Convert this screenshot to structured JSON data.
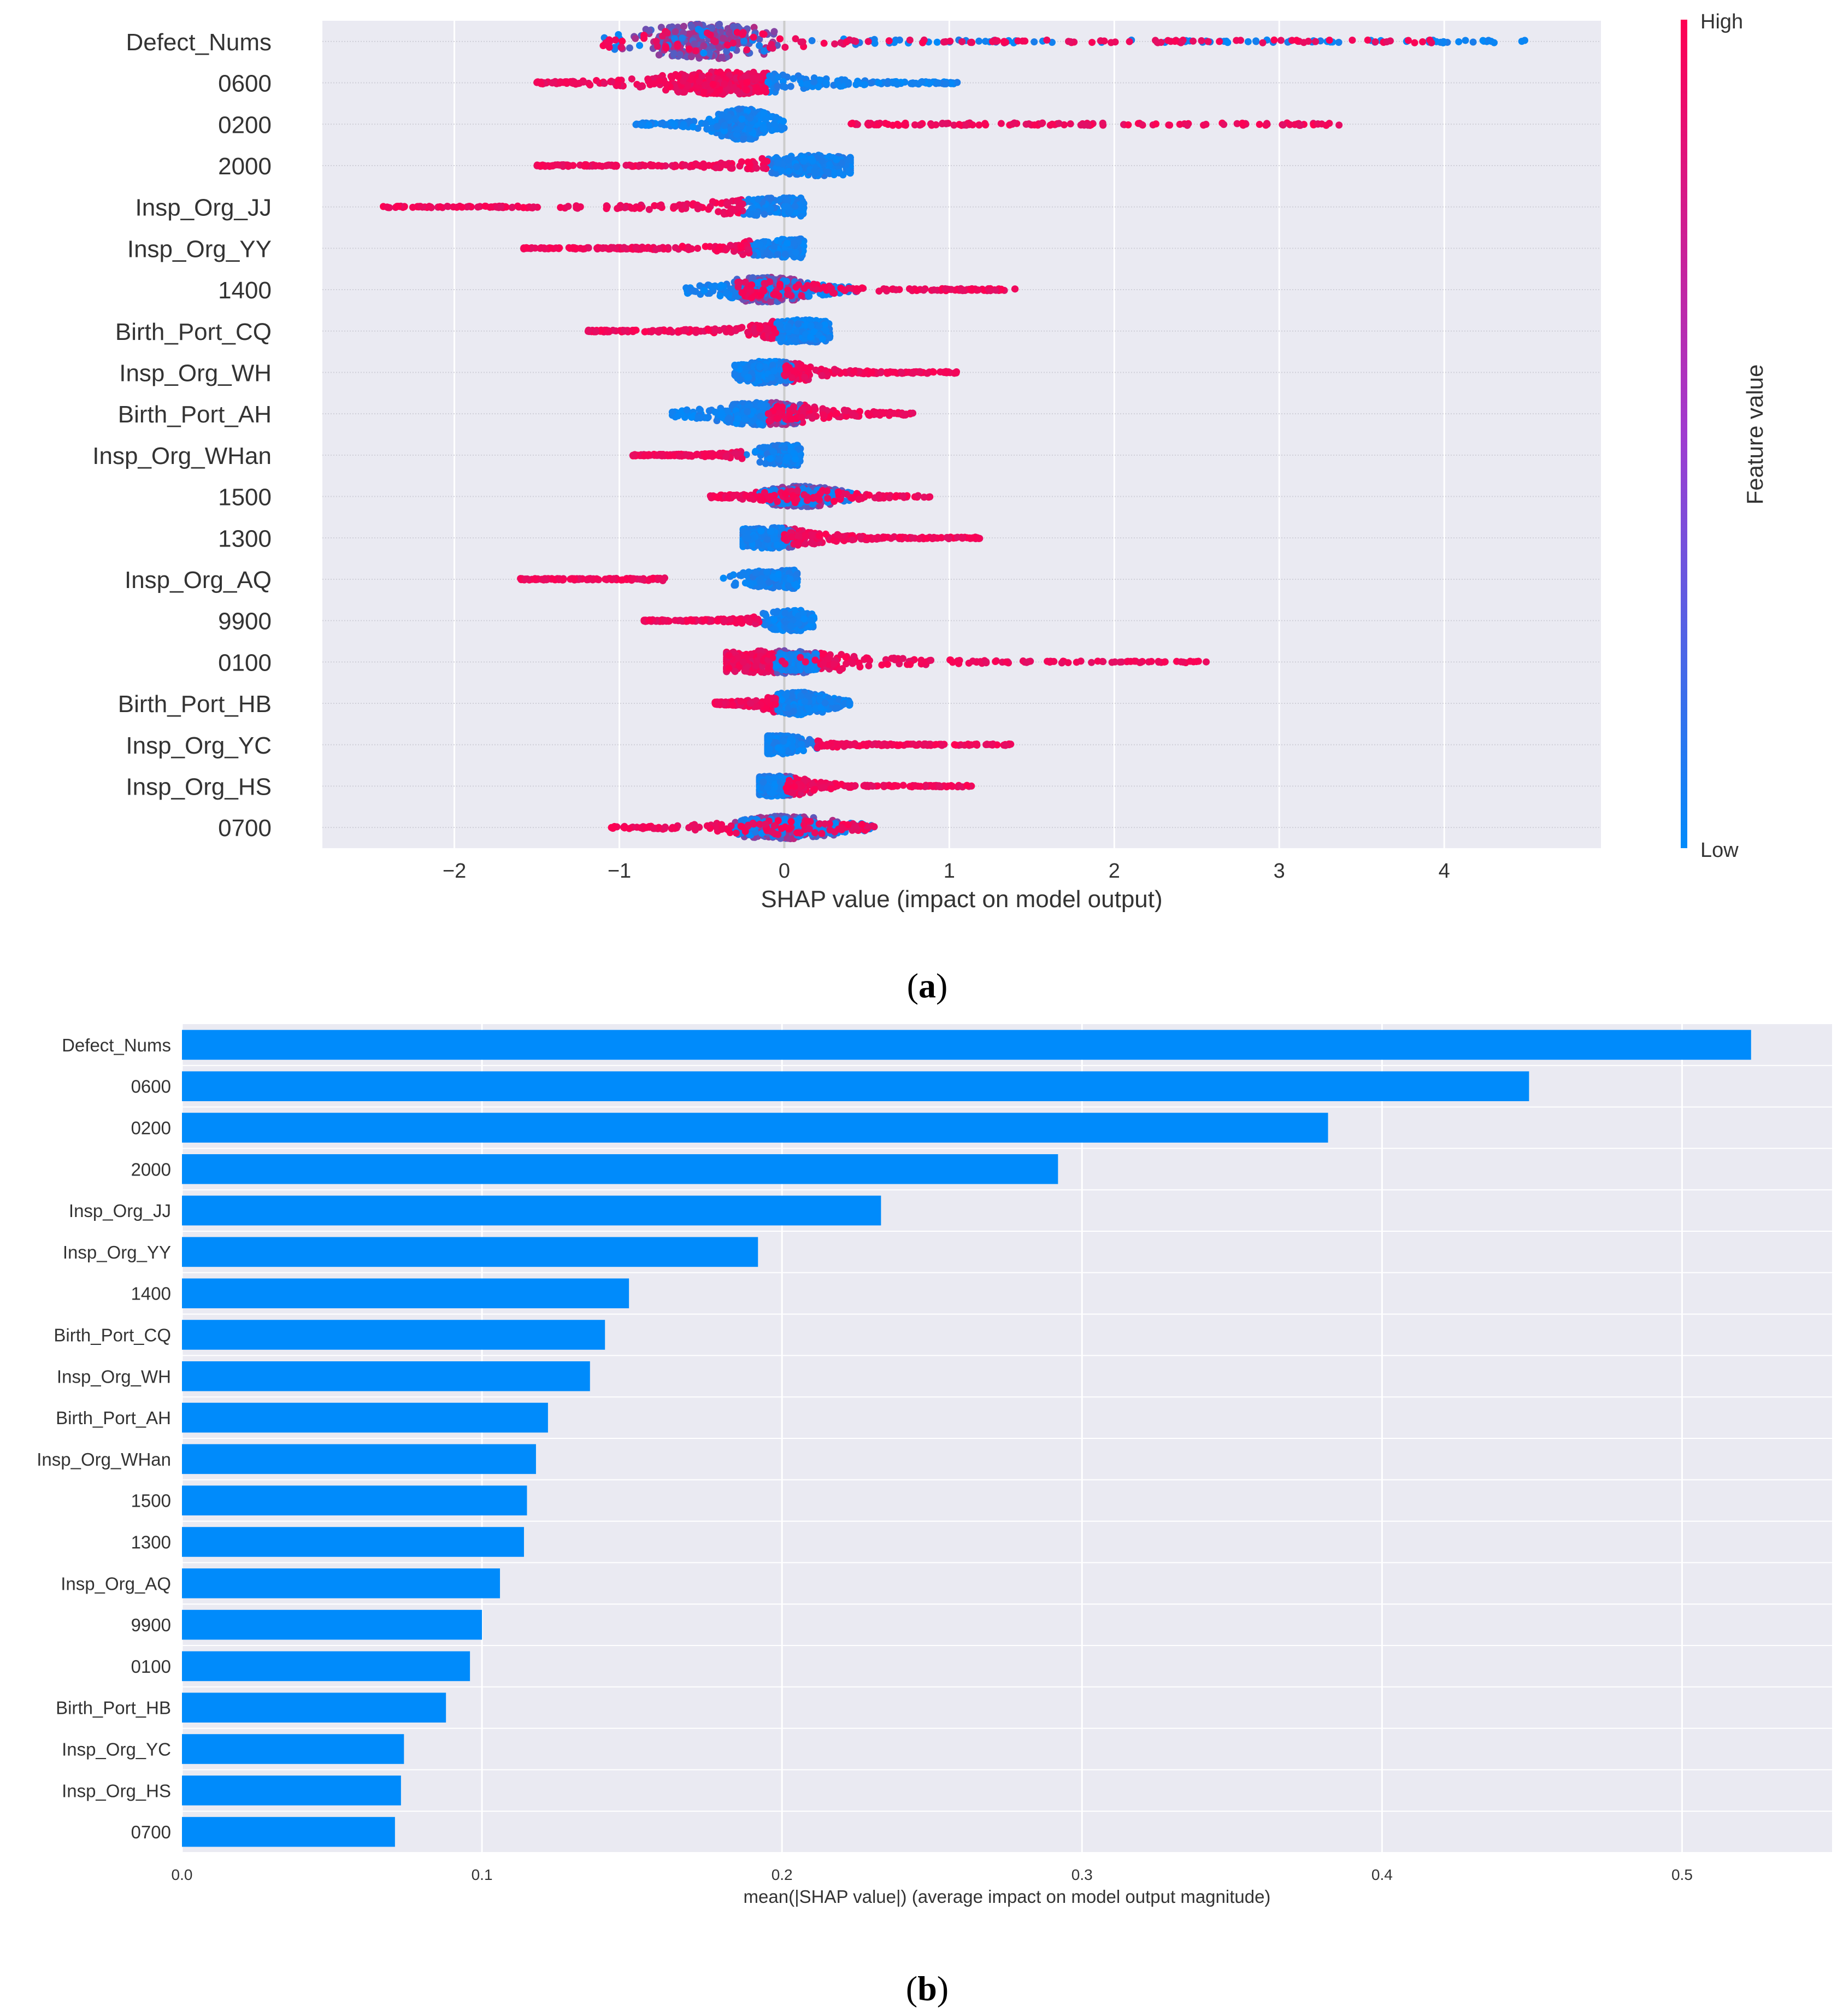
{
  "chart_data": [
    {
      "panel_label": "(a)",
      "panel_label_letter": "a",
      "type": "scatter",
      "subtype": "shap_beeswarm_summary",
      "xlabel": "SHAP value (impact on model output)",
      "xlim": [
        -2.8,
        4.95
      ],
      "xticks": [
        -2,
        -1,
        0,
        1,
        2,
        3,
        4
      ],
      "xtick_labels": [
        "−2",
        "−1",
        "0",
        "1",
        "2",
        "3",
        "4"
      ],
      "grid": true,
      "background": "#eaeaf2",
      "colorbar": {
        "label": "Feature value",
        "high_label": "High",
        "low_label": "Low",
        "high_color": "#ff0052",
        "low_color": "#008bfb"
      },
      "features": [
        {
          "name": "Defect_Nums",
          "low_range": [
            -1.1,
            4.55
          ],
          "high_range": [
            -1.1,
            4.0
          ],
          "core": [
            -1.1,
            0.8
          ],
          "center": -0.5,
          "height": 0.85
        },
        {
          "name": "0600",
          "low_range": [
            0.05,
            1.05
          ],
          "high_range": [
            -1.5,
            -0.1
          ],
          "core": [
            -0.85,
            0.95
          ],
          "center": -0.35,
          "height": 0.55
        },
        {
          "name": "0200",
          "low_range": [
            -0.9,
            0.0
          ],
          "high_range": [
            0.4,
            3.4
          ],
          "core": [
            -0.75,
            -0.05
          ],
          "center": -0.25,
          "height": 0.75
        },
        {
          "name": "2000",
          "low_range": [
            -0.05,
            0.4
          ],
          "high_range": [
            -1.5,
            -0.1
          ],
          "core": [
            -1.1,
            0.4
          ],
          "center": 0.2,
          "height": 0.5
        },
        {
          "name": "Insp_Org_JJ",
          "low_range": [
            0.0,
            0.12
          ],
          "high_range": [
            -2.45,
            -0.25
          ],
          "core": [
            -2.45,
            0.1
          ],
          "center": 0.08,
          "height": 0.45
        },
        {
          "name": "Insp_Org_YY",
          "low_range": [
            0.0,
            0.12
          ],
          "high_range": [
            -1.58,
            -0.2
          ],
          "core": [
            -1.58,
            0.1
          ],
          "center": 0.08,
          "height": 0.45
        },
        {
          "name": "1400",
          "low_range": [
            -0.6,
            0.45
          ],
          "high_range": [
            -0.3,
            1.4
          ],
          "core": [
            -0.6,
            0.6
          ],
          "center": -0.12,
          "height": 0.6
        },
        {
          "name": "Birth_Port_CQ",
          "low_range": [
            -0.05,
            0.28
          ],
          "high_range": [
            -1.2,
            -0.05
          ],
          "core": [
            -1.0,
            0.25
          ],
          "center": 0.1,
          "height": 0.55
        },
        {
          "name": "Insp_Org_WH",
          "low_range": [
            -0.3,
            0.05
          ],
          "high_range": [
            0.0,
            1.05
          ],
          "core": [
            -0.3,
            0.75
          ],
          "center": -0.08,
          "height": 0.55
        },
        {
          "name": "Birth_Port_AH",
          "low_range": [
            -0.68,
            0.1
          ],
          "high_range": [
            -0.1,
            0.78
          ],
          "core": [
            -0.68,
            0.75
          ],
          "center": -0.1,
          "height": 0.55
        },
        {
          "name": "Insp_Org_WHan",
          "low_range": [
            0.0,
            0.1
          ],
          "high_range": [
            -0.92,
            -0.25
          ],
          "core": [
            -0.92,
            0.08
          ],
          "center": 0.05,
          "height": 0.5
        },
        {
          "name": "1500",
          "low_range": [
            -0.15,
            0.45
          ],
          "high_range": [
            -0.45,
            0.9
          ],
          "core": [
            -0.45,
            0.5
          ],
          "center": 0.1,
          "height": 0.5
        },
        {
          "name": "1300",
          "low_range": [
            -0.25,
            0.05
          ],
          "high_range": [
            0.0,
            1.2
          ],
          "core": [
            -0.25,
            0.95
          ],
          "center": -0.08,
          "height": 0.5
        },
        {
          "name": "Insp_Org_AQ",
          "low_range": [
            0.0,
            0.08
          ],
          "high_range": [
            -1.6,
            -0.7
          ],
          "core": [
            -1.5,
            0.06
          ],
          "center": 0.04,
          "height": 0.45
        },
        {
          "name": "9900",
          "low_range": [
            0.0,
            0.18
          ],
          "high_range": [
            -0.85,
            -0.15
          ],
          "core": [
            -0.75,
            0.1
          ],
          "center": 0.06,
          "height": 0.5
        },
        {
          "name": "0100",
          "low_range": [
            -0.05,
            0.2
          ],
          "high_range": [
            -0.35,
            2.6
          ],
          "core": [
            -0.35,
            1.9
          ],
          "center": -0.05,
          "height": 0.55
        },
        {
          "name": "Birth_Port_HB",
          "low_range": [
            -0.05,
            0.4
          ],
          "high_range": [
            -0.42,
            -0.05
          ],
          "core": [
            -0.42,
            0.4
          ],
          "center": 0.08,
          "height": 0.55
        },
        {
          "name": "Insp_Org_YC",
          "low_range": [
            -0.1,
            0.05
          ],
          "high_range": [
            0.2,
            1.38
          ],
          "core": [
            -0.1,
            0.85
          ],
          "center": -0.05,
          "height": 0.45
        },
        {
          "name": "Insp_Org_HS",
          "low_range": [
            -0.15,
            0.05
          ],
          "high_range": [
            0.0,
            1.15
          ],
          "core": [
            -0.15,
            0.75
          ],
          "center": -0.05,
          "height": 0.5
        },
        {
          "name": "0700",
          "low_range": [
            -0.3,
            0.55
          ],
          "high_range": [
            -1.05,
            0.55
          ],
          "core": [
            -0.85,
            0.55
          ],
          "center": -0.02,
          "height": 0.55
        }
      ]
    },
    {
      "panel_label": "(b)",
      "panel_label_letter": "b",
      "type": "bar",
      "orientation": "horizontal",
      "xlabel": "mean(|SHAP value|) (average impact on model output magnitude)",
      "xlim": [
        0,
        0.55
      ],
      "xticks": [
        0.0,
        0.1,
        0.2,
        0.3,
        0.4,
        0.5
      ],
      "xtick_labels": [
        "0.0",
        "0.1",
        "0.2",
        "0.3",
        "0.4",
        "0.5"
      ],
      "grid": true,
      "bar_color": "#008bfb",
      "background": "#eaeaf2",
      "categories": [
        "Defect_Nums",
        "0600",
        "0200",
        "2000",
        "Insp_Org_JJ",
        "Insp_Org_YY",
        "1400",
        "Birth_Port_CQ",
        "Insp_Org_WH",
        "Birth_Port_AH",
        "Insp_Org_WHan",
        "1500",
        "1300",
        "Insp_Org_AQ",
        "9900",
        "0100",
        "Birth_Port_HB",
        "Insp_Org_YC",
        "Insp_Org_HS",
        "0700"
      ],
      "values": [
        0.523,
        0.449,
        0.382,
        0.292,
        0.233,
        0.192,
        0.149,
        0.141,
        0.136,
        0.122,
        0.118,
        0.115,
        0.114,
        0.106,
        0.1,
        0.096,
        0.088,
        0.074,
        0.073,
        0.071
      ]
    }
  ]
}
